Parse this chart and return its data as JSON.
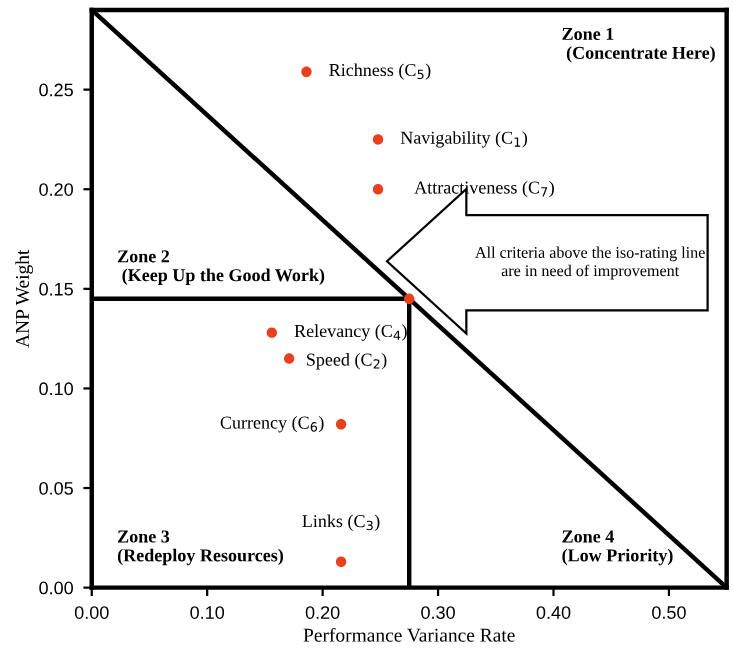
{
  "chart_data": {
    "type": "scatter",
    "xlabel": "Performance Variance Rate",
    "ylabel": "ANP Weight",
    "xlim": [
      0,
      0.55
    ],
    "ylim": [
      0,
      0.29
    ],
    "xticks": [
      {
        "value": 0,
        "label": "0.00"
      },
      {
        "value": 0.1,
        "label": "0.10"
      },
      {
        "value": 0.2,
        "label": "0.20"
      },
      {
        "value": 0.3,
        "label": "0.30"
      },
      {
        "value": 0.4,
        "label": "0.40"
      },
      {
        "value": 0.5,
        "label": "0.50"
      }
    ],
    "yticks": [
      {
        "value": 0,
        "label": "0.00"
      },
      {
        "value": 0.05,
        "label": "0.05"
      },
      {
        "value": 0.1,
        "label": "0.10"
      },
      {
        "value": 0.15,
        "label": "0.15"
      },
      {
        "value": 0.2,
        "label": "0.20"
      },
      {
        "value": 0.25,
        "label": "0.25"
      }
    ],
    "grid": false,
    "legend": false,
    "series": [
      {
        "type": "line",
        "marker": "none",
        "color": "#000000",
        "x": [
          0,
          0.55
        ],
        "values": [
          0.29,
          0
        ]
      },
      {
        "type": "line",
        "marker": "none",
        "color": "#000000",
        "x": [
          0,
          0.275,
          0.275
        ],
        "values": [
          0.145,
          0.145,
          0
        ]
      },
      {
        "marker": "circle",
        "color": "#e8401c",
        "x": [
          0.186,
          0.248,
          0.248,
          0.156,
          0.171,
          0.216,
          0.216,
          0.275
        ],
        "values": [
          0.259,
          0.225,
          0.2,
          0.128,
          0.115,
          0.082,
          0.013,
          0.145
        ]
      }
    ],
    "annotations": [
      {
        "text": "Richness (C$_{5}$)",
        "x": 0.186,
        "y": 0.259
      },
      {
        "text": "Navigability (C$_{1}$)",
        "x": 0.248,
        "y": 0.225
      },
      {
        "text": "Attractiveness (C$_{7}$)",
        "x": 0.248,
        "y": 0.2
      },
      {
        "text": "Relevancy (C$_{4}$)",
        "x": 0.156,
        "y": 0.128
      },
      {
        "text": "Speed (C$_{2}$)",
        "x": 0.171,
        "y": 0.115
      },
      {
        "text": "Currency (C$_{6}$)",
        "x": 0.216,
        "y": 0.082
      },
      {
        "text": "Links (C$_{3}$)",
        "x": 0.216,
        "y": 0.013
      },
      "Zone 1\n (Concentrate Here)",
      "Zone 2\n (Keep Up the Good Work)",
      "Zone 3\n(Redeploy Resources)",
      "Zone 4\n(Low Priority)",
      "All criteria above the iso-rating line\nare in need of improvement"
    ]
  }
}
